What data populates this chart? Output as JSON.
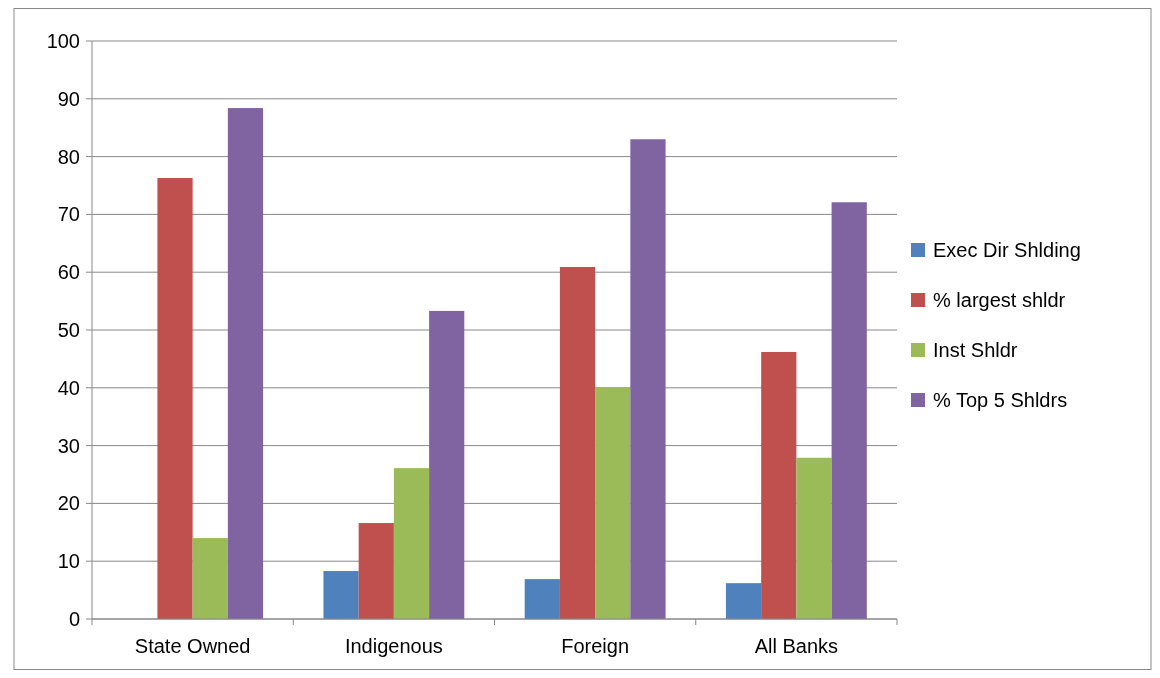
{
  "chart_data": {
    "type": "bar",
    "categories": [
      "State Owned",
      "Indigenous",
      "Foreign",
      "All Banks"
    ],
    "series": [
      {
        "name": "Exec Dir Shlding",
        "color": "#4f81bd",
        "values": [
          0,
          8.3,
          6.9,
          6.2
        ]
      },
      {
        "name": "% largest shldr",
        "color": "#c0504d",
        "values": [
          76.3,
          16.6,
          60.9,
          46.2
        ]
      },
      {
        "name": "Inst Shldr",
        "color": "#9bbb59",
        "values": [
          14,
          26.1,
          40.1,
          27.9
        ]
      },
      {
        "name": "% Top 5 Shldrs",
        "color": "#8064a2",
        "values": [
          88.4,
          53.3,
          83,
          72.1
        ]
      }
    ],
    "ylim": [
      0,
      100
    ],
    "yticks": [
      0,
      10,
      20,
      30,
      40,
      50,
      60,
      70,
      80,
      90,
      100
    ],
    "grid": "y",
    "legend": "right"
  }
}
